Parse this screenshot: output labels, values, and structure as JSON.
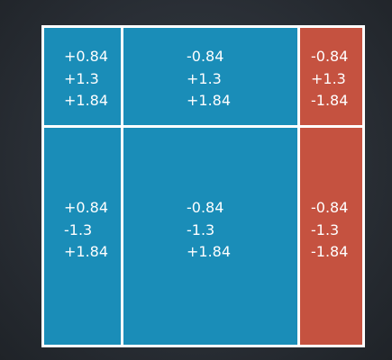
{
  "colors": {
    "blue_region": "#1a8db8",
    "red_region": "#c55240",
    "grid_lines": "#ffffff",
    "background": "#2a2f36"
  },
  "grid": {
    "rows": [
      {
        "cells": [
          {
            "region": "blue",
            "values": [
              "+0.84",
              "+1.3",
              "+1.84"
            ]
          },
          {
            "region": "blue",
            "values": [
              "-0.84",
              "+1.3",
              "+1.84"
            ]
          },
          {
            "region": "red",
            "values": [
              "-0.84",
              "+1.3",
              "-1.84"
            ]
          }
        ]
      },
      {
        "cells": [
          {
            "region": "blue",
            "values": [
              "+0.84",
              "-1.3",
              "+1.84"
            ]
          },
          {
            "region": "blue",
            "values": [
              "-0.84",
              "-1.3",
              "+1.84"
            ]
          },
          {
            "region": "red",
            "values": [
              "-0.84",
              "-1.3",
              "-1.84"
            ]
          }
        ]
      }
    ]
  }
}
